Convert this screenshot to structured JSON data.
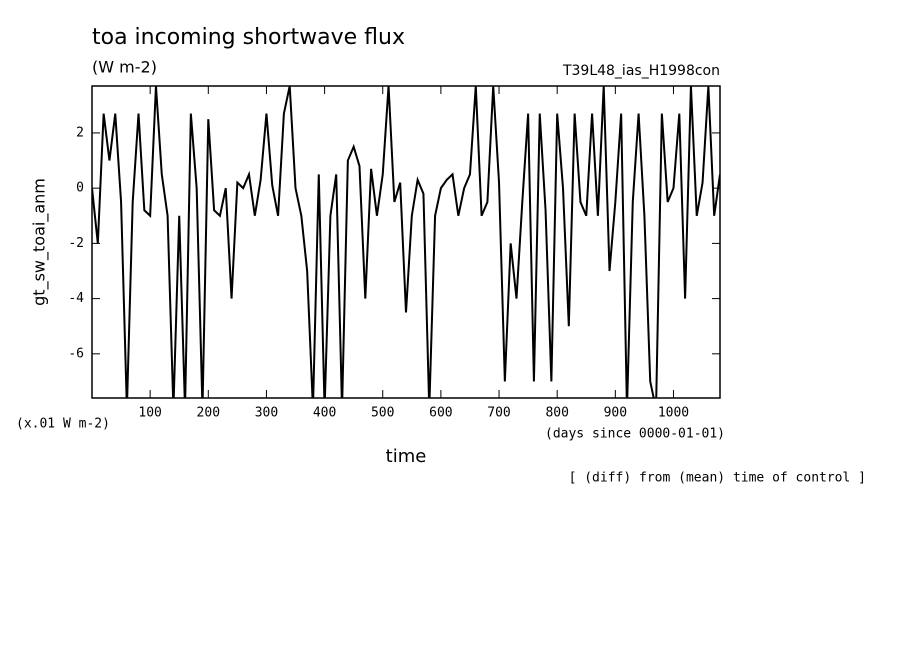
{
  "chart_data": {
    "type": "line",
    "title": "toa incoming shortwave flux",
    "subtitle": "(W m-2)",
    "annotation": "T39L48_ias_H1998con",
    "y_label": "gt_sw_toai_anm",
    "y_unit": "(x.01 W m-2)",
    "x_label": "time",
    "x_unit": "(days since 0000-01-01)",
    "note": "[ (diff) from (mean) time of control ]",
    "xlim": [
      0,
      1080
    ],
    "ylim": [
      -7.6,
      3.7
    ],
    "xticks": [
      100,
      200,
      300,
      400,
      500,
      600,
      700,
      800,
      900,
      1000
    ],
    "yticks": [
      -6,
      -4,
      -2,
      0,
      2
    ],
    "x": [
      0,
      10,
      20,
      30,
      40,
      50,
      60,
      70,
      80,
      90,
      100,
      110,
      120,
      130,
      140,
      150,
      160,
      170,
      180,
      190,
      200,
      210,
      220,
      230,
      240,
      250,
      260,
      270,
      280,
      290,
      300,
      310,
      320,
      330,
      340,
      350,
      360,
      370,
      380,
      390,
      400,
      410,
      420,
      430,
      440,
      450,
      460,
      470,
      480,
      490,
      500,
      510,
      520,
      530,
      540,
      550,
      560,
      570,
      580,
      590,
      600,
      610,
      620,
      630,
      640,
      650,
      660,
      670,
      680,
      690,
      700,
      710,
      720,
      730,
      740,
      750,
      760,
      770,
      780,
      790,
      800,
      810,
      820,
      830,
      840,
      850,
      860,
      870,
      880,
      890,
      900,
      910,
      920,
      930,
      940,
      950,
      960,
      970,
      980,
      990,
      1000,
      1010,
      1020,
      1030,
      1040,
      1050,
      1060,
      1070,
      1080
    ],
    "series": [
      {
        "name": "gt_sw_toai_anm",
        "color": "#000000",
        "values": [
          0,
          -2,
          2.7,
          1,
          2.7,
          -0.5,
          -8,
          -0.5,
          2.7,
          -0.8,
          -1,
          3.7,
          0.5,
          -1,
          -8,
          -1,
          -8,
          2.7,
          0,
          -8,
          2.5,
          -0.8,
          -1,
          0,
          -4,
          0.2,
          0,
          0.5,
          -1,
          0.3,
          2.7,
          0.1,
          -1,
          2.7,
          3.7,
          0,
          -1,
          -3,
          -8,
          0.5,
          -8,
          -1,
          0.5,
          -8,
          1,
          1.5,
          0.8,
          -4,
          0.7,
          -1,
          0.5,
          3.7,
          -0.5,
          0.2,
          -4.5,
          -1,
          0.3,
          -0.2,
          -8,
          -1,
          0,
          0.3,
          0.5,
          -1,
          0,
          0.5,
          3.7,
          -1,
          -0.5,
          3.7,
          0.2,
          -7,
          -2,
          -4,
          -0.5,
          2.7,
          -7,
          2.7,
          -0.8,
          -7,
          2.7,
          0,
          -5,
          2.7,
          -0.5,
          -1,
          2.7,
          -1,
          3.7,
          -3,
          -0.5,
          2.7,
          -8,
          -0.5,
          2.7,
          -1,
          -7,
          -8,
          2.7,
          -0.5,
          0,
          2.7,
          -4,
          3.7,
          -1,
          0.2,
          3.7,
          -1,
          0.5
        ]
      }
    ]
  }
}
